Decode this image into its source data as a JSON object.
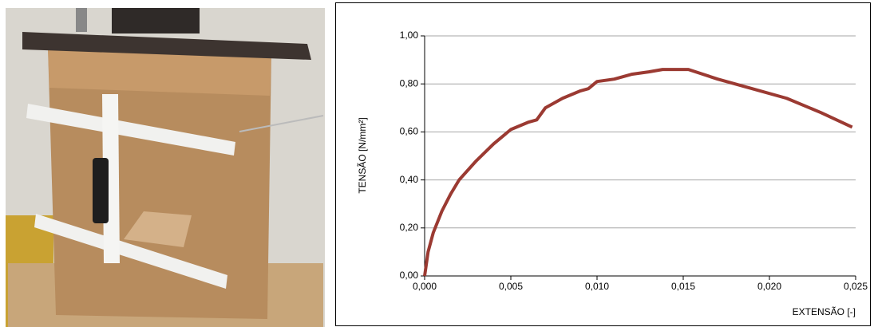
{
  "chart_data": {
    "type": "line",
    "x_label": "EXTENSÃO [-]",
    "y_label": "TENSÃO [N/mm²]",
    "x": [
      0,
      0.0002,
      0.0005,
      0.001,
      0.0015,
      0.002,
      0.003,
      0.004,
      0.005,
      0.006,
      0.0065,
      0.007,
      0.008,
      0.009,
      0.0095,
      0.01,
      0.011,
      0.012,
      0.013,
      0.0138,
      0.0153,
      0.017,
      0.019,
      0.021,
      0.023,
      0.0248
    ],
    "series": [
      {
        "color": "#9b3a32",
        "values": [
          0,
          0.1,
          0.18,
          0.27,
          0.34,
          0.4,
          0.48,
          0.55,
          0.61,
          0.64,
          0.65,
          0.7,
          0.74,
          0.77,
          0.78,
          0.81,
          0.82,
          0.84,
          0.85,
          0.86,
          0.86,
          0.82,
          0.78,
          0.74,
          0.68,
          0.62
        ]
      }
    ],
    "xlim": [
      0,
      0.025
    ],
    "ylim": [
      0,
      1
    ],
    "xticks": [
      {
        "value": 0,
        "label": "0,000"
      },
      {
        "value": 0.005,
        "label": "0,005"
      },
      {
        "value": 0.01,
        "label": "0,010"
      },
      {
        "value": 0.015,
        "label": "0,015"
      },
      {
        "value": 0.02,
        "label": "0,020"
      },
      {
        "value": 0.025,
        "label": "0,025"
      }
    ],
    "yticks": [
      {
        "value": 0,
        "label": "0,00"
      },
      {
        "value": 0.2,
        "label": "0,20"
      },
      {
        "value": 0.4,
        "label": "0,40"
      },
      {
        "value": 0.6,
        "label": "0,60"
      },
      {
        "value": 0.8,
        "label": "0,80"
      },
      {
        "value": 1,
        "label": "1,00"
      }
    ],
    "grid": true
  }
}
